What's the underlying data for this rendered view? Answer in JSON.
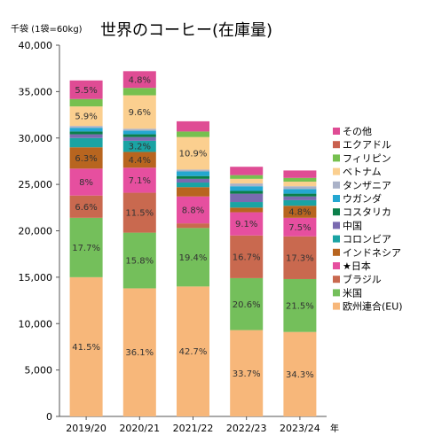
{
  "header": {
    "unit_note": "千袋 (1袋=60kg)",
    "title": "世界のコーヒー(在庫量)"
  },
  "chart_data": {
    "type": "bar",
    "stacked": true,
    "categories": [
      "2019/20",
      "2020/21",
      "2021/22",
      "2022/23",
      "2023/24"
    ],
    "x_unit": "年",
    "ylim": [
      0,
      40000
    ],
    "y_ticks": [
      0,
      5000,
      10000,
      15000,
      20000,
      25000,
      30000,
      35000,
      40000
    ],
    "y_tick_labels": [
      "0",
      "5,000",
      "10,000",
      "15,000",
      "20,000",
      "25,000",
      "30,000",
      "35,000",
      "40,000"
    ],
    "grid": false,
    "legend_position": "right",
    "series": [
      {
        "name": "欧州連合(EU)",
        "color": "#f7b77a",
        "values": [
          15000,
          13800,
          14000,
          9300,
          9100
        ],
        "labels": [
          "41.5%",
          "36.1%",
          "42.7%",
          "33.7%",
          "34.3%"
        ]
      },
      {
        "name": "米国",
        "color": "#74bf5b",
        "values": [
          6400,
          6000,
          6300,
          5600,
          5700
        ],
        "labels": [
          "17.7%",
          "15.8%",
          "19.4%",
          "20.6%",
          "21.5%"
        ]
      },
      {
        "name": "ブラジル",
        "color": "#c9694f",
        "values": [
          2400,
          4300,
          500,
          4600,
          4600
        ],
        "labels": [
          "6.6%",
          "11.5%",
          "",
          "16.7%",
          "17.3%"
        ]
      },
      {
        "name": "★日本",
        "color": "#e64f9f",
        "values": [
          2900,
          2700,
          2900,
          2500,
          2000
        ],
        "labels": [
          "8%",
          "7.1%",
          "8.8%",
          "9.1%",
          "7.5%"
        ]
      },
      {
        "name": "インドネシア",
        "color": "#b8651f",
        "values": [
          2300,
          1700,
          1000,
          500,
          1300
        ],
        "labels": [
          "6.3%",
          "4.4%",
          "",
          "",
          "4.8%"
        ]
      },
      {
        "name": "コロンビア",
        "color": "#1aa3a3",
        "values": [
          1000,
          1200,
          500,
          600,
          600
        ],
        "labels": [
          "",
          "3.2%",
          "",
          "",
          ""
        ]
      },
      {
        "name": "中国",
        "color": "#7a6bb0",
        "values": [
          400,
          400,
          400,
          900,
          400
        ],
        "labels": [
          "",
          "",
          "",
          "",
          ""
        ]
      },
      {
        "name": "コスタリカ",
        "color": "#0b7f4a",
        "values": [
          300,
          300,
          300,
          300,
          300
        ],
        "labels": [
          "",
          "",
          "",
          "",
          ""
        ]
      },
      {
        "name": "ウガンダ",
        "color": "#24a7d1",
        "values": [
          400,
          400,
          500,
          500,
          500
        ],
        "labels": [
          "",
          "",
          "",
          "",
          ""
        ]
      },
      {
        "name": "タンザニア",
        "color": "#aab2c8",
        "values": [
          200,
          200,
          200,
          300,
          300
        ],
        "labels": [
          "",
          "",
          "",
          "",
          ""
        ]
      },
      {
        "name": "ベトナム",
        "color": "#fbcf8f",
        "values": [
          2100,
          3600,
          3500,
          500,
          500
        ],
        "labels": [
          "5.9%",
          "9.6%",
          "10.9%",
          "",
          ""
        ]
      },
      {
        "name": "フィリピン",
        "color": "#76c04f",
        "values": [
          800,
          800,
          600,
          400,
          400
        ],
        "labels": [
          "",
          "",
          "",
          "",
          ""
        ]
      },
      {
        "name": "エクアドル",
        "color": "#c9614f",
        "values": [
          0,
          0,
          0,
          0,
          0
        ],
        "labels": [
          "",
          "",
          "",
          "",
          ""
        ]
      },
      {
        "name": "その他",
        "color": "#df4c94",
        "values": [
          2000,
          1800,
          1100,
          900,
          800
        ],
        "labels": [
          "5.5%",
          "4.8%",
          "",
          "",
          ""
        ]
      }
    ]
  }
}
